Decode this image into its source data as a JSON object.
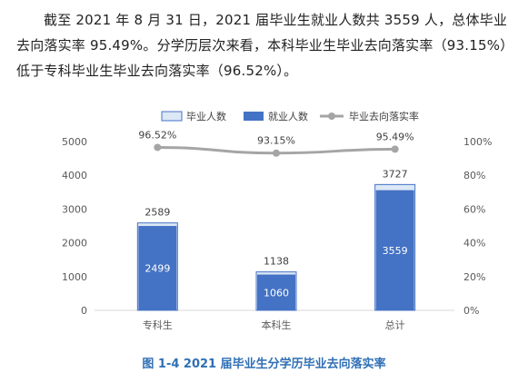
{
  "paragraph": "截至 2021 年 8 月 31 日，2021 届毕业生就业人数共 3559 人，总体毕业去向落实率 95.49%。分学历层次来看，本科毕业生毕业去向落实率（93.15%）低于专科毕业生毕业去向落实率（96.52%）。",
  "caption": "图 1-4 2021 届毕业生分学历毕业去向落实率",
  "colors": {
    "graduates": "#dce8f6",
    "graduates_border": "#4472c4",
    "employed": "#4472c4",
    "rate": "#a5a5a5",
    "caption": "#2f6fb5"
  },
  "chart_data": {
    "type": "bar",
    "title": "",
    "categories": [
      "专科生",
      "本科生",
      "总计"
    ],
    "series": [
      {
        "name": "毕业人数",
        "kind": "bar",
        "values": [
          2589,
          1138,
          3727
        ]
      },
      {
        "name": "就业人数",
        "kind": "bar",
        "values": [
          2499,
          1060,
          3559
        ]
      },
      {
        "name": "毕业去向落实率",
        "kind": "line",
        "axis": "right",
        "values": [
          96.52,
          93.15,
          95.49
        ],
        "labels": [
          "96.52%",
          "93.15%",
          "95.49%"
        ]
      }
    ],
    "y_left": {
      "ylim": [
        0,
        5000
      ],
      "ticks": [
        "0",
        "1000",
        "2000",
        "3000",
        "4000",
        "5000"
      ]
    },
    "y_right": {
      "ylim": [
        0,
        100
      ],
      "ticks": [
        "0%",
        "20%",
        "40%",
        "60%",
        "80%",
        "100%"
      ]
    },
    "legend": "top",
    "grid": false
  }
}
